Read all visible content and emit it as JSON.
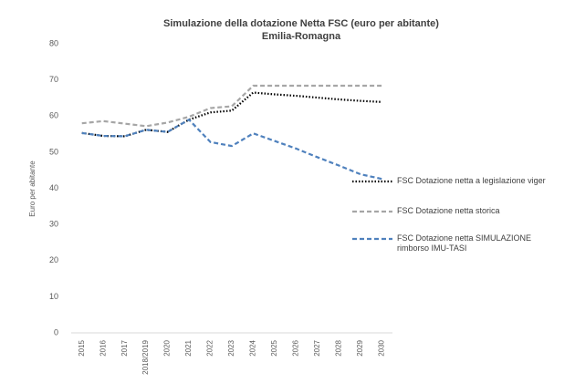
{
  "chart_data": {
    "type": "line",
    "title": "Simulazione della dotazione Netta FSC (euro per abitante)",
    "subtitle": "Emilia-Romagna",
    "y_label": "Euro per abitante",
    "categories": [
      "2015",
      "2016",
      "2017",
      "2018/2019",
      "2020",
      "2021",
      "2022",
      "2023",
      "2024",
      "2025",
      "2026",
      "2027",
      "2028",
      "2029",
      "2030"
    ],
    "series": [
      {
        "name": "FSC Dotazione netta a legislazione viger",
        "color": "#000000",
        "dash": "dotted",
        "values": [
          55.3,
          54.5,
          54.4,
          56.2,
          55.6,
          59.0,
          61.0,
          61.5,
          66.5,
          66.0,
          65.6,
          65.1,
          64.6,
          64.2,
          63.9
        ]
      },
      {
        "name": "FSC Dotazione netta storica",
        "color": "#a6a6a6",
        "dash": "dashed",
        "values": [
          58.0,
          58.6,
          57.9,
          57.2,
          58.2,
          59.8,
          62.2,
          62.7,
          68.4,
          68.4,
          68.4,
          68.4,
          68.4,
          68.4,
          68.4
        ]
      },
      {
        "name": "FSC Dotazione netta SIMULAZIONE rimborso IMU-TASI",
        "color": "#4f81bd",
        "dash": "dashed",
        "values": [
          55.3,
          54.5,
          54.4,
          56.2,
          55.6,
          59.0,
          52.8,
          51.7,
          55.2,
          53.1,
          51.0,
          48.6,
          46.3,
          43.9,
          42.6
        ]
      }
    ],
    "ylim": [
      0,
      80
    ],
    "yticks": [
      0,
      10,
      20,
      30,
      40,
      50,
      60,
      70,
      80
    ],
    "grid": false,
    "legend": "right"
  }
}
